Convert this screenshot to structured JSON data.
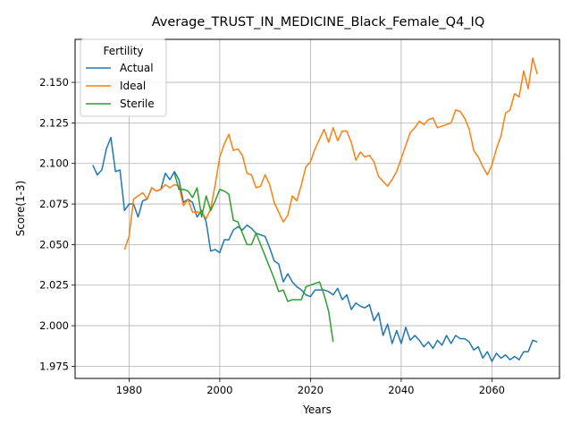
{
  "chart_data": {
    "type": "line",
    "title": "Average_TRUST_IN_MEDICINE_Black_Female_Q4_IQ",
    "xlabel": "Years",
    "ylabel": "Score(1-3)",
    "xlim": [
      1968.1,
      2074.9
    ],
    "ylim": [
      1.9675,
      2.1765
    ],
    "xticks": [
      1980,
      2000,
      2020,
      2040,
      2060
    ],
    "yticks": [
      1.975,
      2.0,
      2.025,
      2.05,
      2.075,
      2.1,
      2.125,
      2.15
    ],
    "ytick_labels": [
      "1.975",
      "2.000",
      "2.025",
      "2.050",
      "2.075",
      "2.100",
      "2.125",
      "2.150"
    ],
    "grid": true,
    "legend": {
      "title": "Fertility",
      "position": "top-left"
    },
    "series": [
      {
        "name": "Actual",
        "color": "#1f77b4",
        "x": [
          1972,
          1973,
          1974,
          1975,
          1976,
          1977,
          1978,
          1979,
          1980,
          1981,
          1982,
          1983,
          1984,
          1985,
          1986,
          1987,
          1988,
          1989,
          1990,
          1991,
          1992,
          1993,
          1994,
          1995,
          1996,
          1997,
          1998,
          1999,
          2000,
          2001,
          2002,
          2003,
          2004,
          2005,
          2006,
          2007,
          2008,
          2009,
          2010,
          2011,
          2012,
          2013,
          2014,
          2015,
          2016,
          2017,
          2018,
          2019,
          2020,
          2021,
          2022,
          2023,
          2024,
          2025,
          2026,
          2027,
          2028,
          2029,
          2030,
          2031,
          2032,
          2033,
          2034,
          2035,
          2036,
          2037,
          2038,
          2039,
          2040,
          2041,
          2042,
          2043,
          2044,
          2045,
          2046,
          2047,
          2048,
          2049,
          2050,
          2051,
          2052,
          2053,
          2054,
          2055,
          2056,
          2057,
          2058,
          2059,
          2060,
          2061,
          2062,
          2063,
          2064,
          2065,
          2066,
          2067,
          2068,
          2069,
          2070
        ],
        "values": [
          2.099,
          2.093,
          2.096,
          2.109,
          2.116,
          2.095,
          2.096,
          2.071,
          2.075,
          2.075,
          2.067,
          2.077,
          2.078,
          2.085,
          2.083,
          2.084,
          2.094,
          2.09,
          2.095,
          2.09,
          2.076,
          2.078,
          2.076,
          2.067,
          2.071,
          2.064,
          2.046,
          2.047,
          2.045,
          2.053,
          2.053,
          2.059,
          2.061,
          2.059,
          2.062,
          2.06,
          2.057,
          2.056,
          2.055,
          2.048,
          2.04,
          2.038,
          2.027,
          2.032,
          2.027,
          2.024,
          2.022,
          2.019,
          2.018,
          2.022,
          2.022,
          2.022,
          2.021,
          2.019,
          2.023,
          2.016,
          2.019,
          2.01,
          2.014,
          2.012,
          2.011,
          2.013,
          2.003,
          2.008,
          1.994,
          2.001,
          1.989,
          1.997,
          1.989,
          1.999,
          1.991,
          1.994,
          1.991,
          1.987,
          1.99,
          1.986,
          1.991,
          1.988,
          1.994,
          1.989,
          1.994,
          1.992,
          1.992,
          1.99,
          1.985,
          1.987,
          1.98,
          1.984,
          1.978,
          1.983,
          1.98,
          1.982,
          1.979,
          1.981,
          1.979,
          1.984,
          1.984,
          1.991,
          1.99
        ]
      },
      {
        "name": "Ideal",
        "color": "#ff7f0e",
        "x": [
          1979,
          1980,
          1981,
          1982,
          1983,
          1984,
          1985,
          1986,
          1987,
          1988,
          1989,
          1990,
          1991,
          1992,
          1993,
          1994,
          1995,
          1996,
          1997,
          1998,
          1999,
          2000,
          2001,
          2002,
          2003,
          2004,
          2005,
          2006,
          2007,
          2008,
          2009,
          2010,
          2011,
          2012,
          2013,
          2014,
          2015,
          2016,
          2017,
          2018,
          2019,
          2020,
          2021,
          2022,
          2023,
          2024,
          2025,
          2026,
          2027,
          2028,
          2029,
          2030,
          2031,
          2032,
          2033,
          2034,
          2035,
          2036,
          2037,
          2038,
          2039,
          2040,
          2041,
          2042,
          2043,
          2044,
          2045,
          2046,
          2047,
          2048,
          2049,
          2050,
          2051,
          2052,
          2053,
          2054,
          2055,
          2056,
          2057,
          2058,
          2059,
          2060,
          2061,
          2062,
          2063,
          2064,
          2065,
          2066,
          2067,
          2068,
          2069,
          2070
        ],
        "values": [
          2.047,
          2.055,
          2.078,
          2.08,
          2.082,
          2.078,
          2.085,
          2.083,
          2.084,
          2.087,
          2.085,
          2.087,
          2.086,
          2.074,
          2.078,
          2.07,
          2.07,
          2.07,
          2.066,
          2.072,
          2.087,
          2.104,
          2.112,
          2.118,
          2.108,
          2.109,
          2.105,
          2.094,
          2.093,
          2.085,
          2.086,
          2.093,
          2.087,
          2.076,
          2.07,
          2.064,
          2.068,
          2.08,
          2.077,
          2.087,
          2.098,
          2.101,
          2.109,
          2.115,
          2.121,
          2.113,
          2.122,
          2.114,
          2.12,
          2.12,
          2.113,
          2.102,
          2.107,
          2.104,
          2.105,
          2.101,
          2.092,
          2.089,
          2.086,
          2.09,
          2.095,
          2.103,
          2.111,
          2.119,
          2.122,
          2.126,
          2.124,
          2.127,
          2.128,
          2.122,
          2.123,
          2.124,
          2.125,
          2.133,
          2.132,
          2.128,
          2.121,
          2.108,
          2.104,
          2.098,
          2.093,
          2.099,
          2.109,
          2.117,
          2.131,
          2.133,
          2.143,
          2.141,
          2.157,
          2.146,
          2.165,
          2.155
        ]
      },
      {
        "name": "Sterile",
        "color": "#2ca02c",
        "x": [
          1990,
          1991,
          1992,
          1993,
          1994,
          1995,
          1996,
          1997,
          1998,
          1999,
          2000,
          2001,
          2002,
          2003,
          2004,
          2005,
          2006,
          2007,
          2008,
          2009,
          2010,
          2011,
          2012,
          2013,
          2014,
          2015,
          2016,
          2017,
          2018,
          2019,
          2020,
          2021,
          2022,
          2023,
          2024,
          2025
        ],
        "values": [
          2.094,
          2.084,
          2.084,
          2.083,
          2.079,
          2.085,
          2.067,
          2.08,
          2.071,
          2.077,
          2.084,
          2.083,
          2.081,
          2.065,
          2.064,
          2.057,
          2.05,
          2.05,
          2.057,
          2.05,
          2.043,
          2.036,
          2.029,
          2.021,
          2.022,
          2.015,
          2.016,
          2.016,
          2.016,
          2.024,
          2.025,
          2.026,
          2.027,
          2.019,
          2.009,
          1.99
        ]
      }
    ]
  }
}
